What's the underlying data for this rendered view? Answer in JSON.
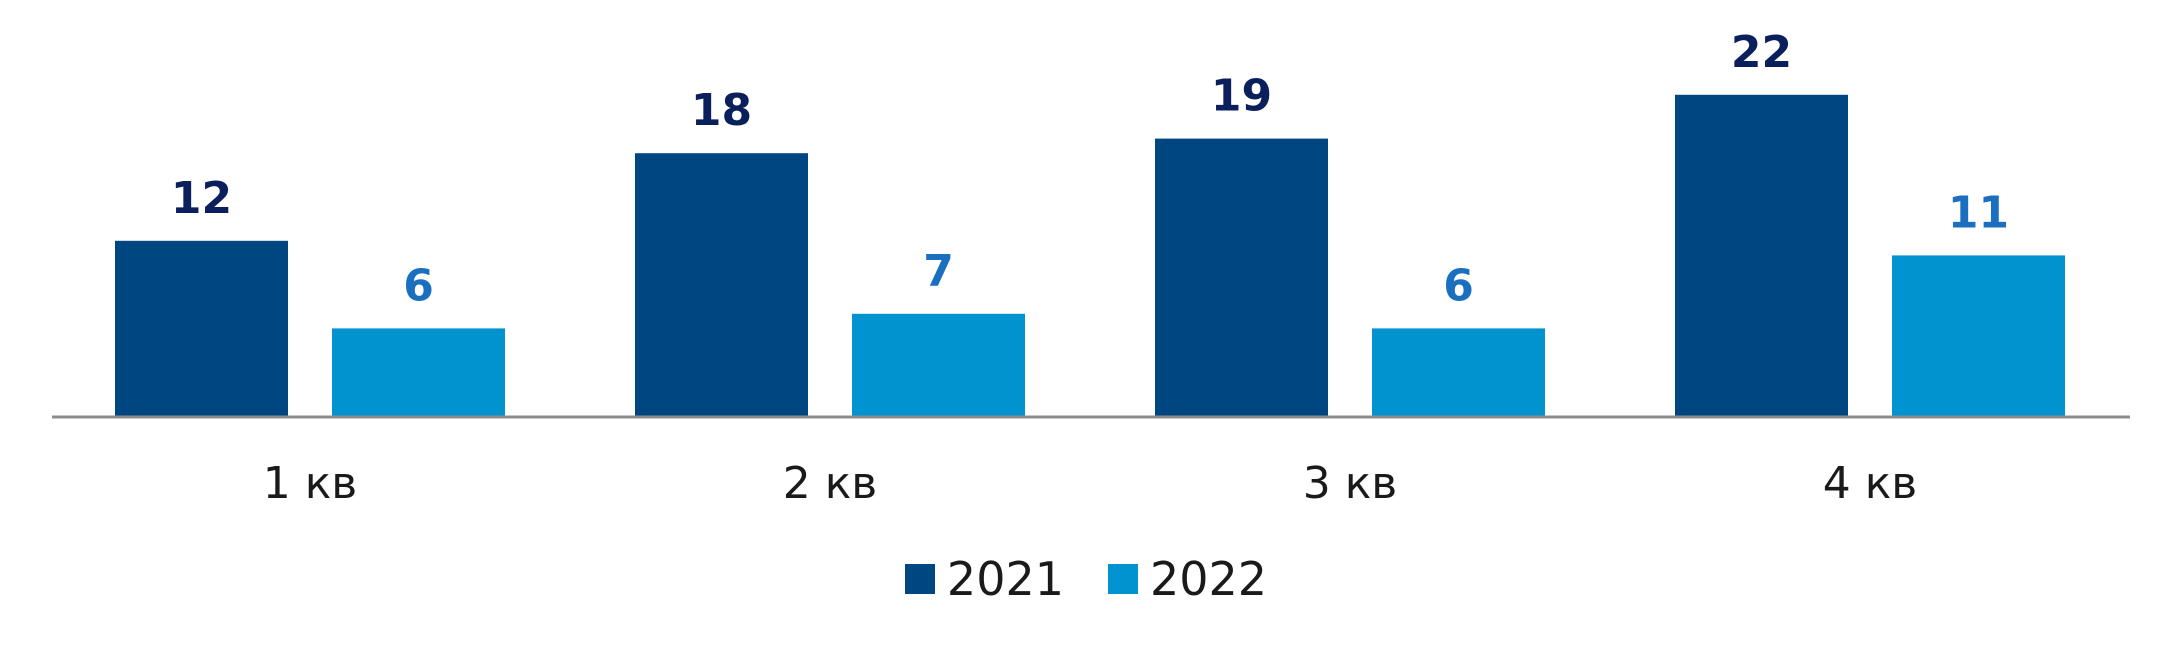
{
  "chart_data": {
    "type": "bar",
    "categories": [
      "1 кв",
      "2 кв",
      "3 кв",
      "4 кв"
    ],
    "series": [
      {
        "name": "2021",
        "values": [
          12,
          18,
          19,
          22
        ],
        "color": "#004680",
        "label_color": "#0b1f5c"
      },
      {
        "name": "2022",
        "values": [
          6,
          7,
          6,
          11
        ],
        "color": "#0093d0",
        "label_color": "#1a6fc0"
      }
    ],
    "ylim": [
      0,
      26
    ],
    "grid": false,
    "legend_position": "bottom-center",
    "axis_color": "#8c8c8c"
  }
}
